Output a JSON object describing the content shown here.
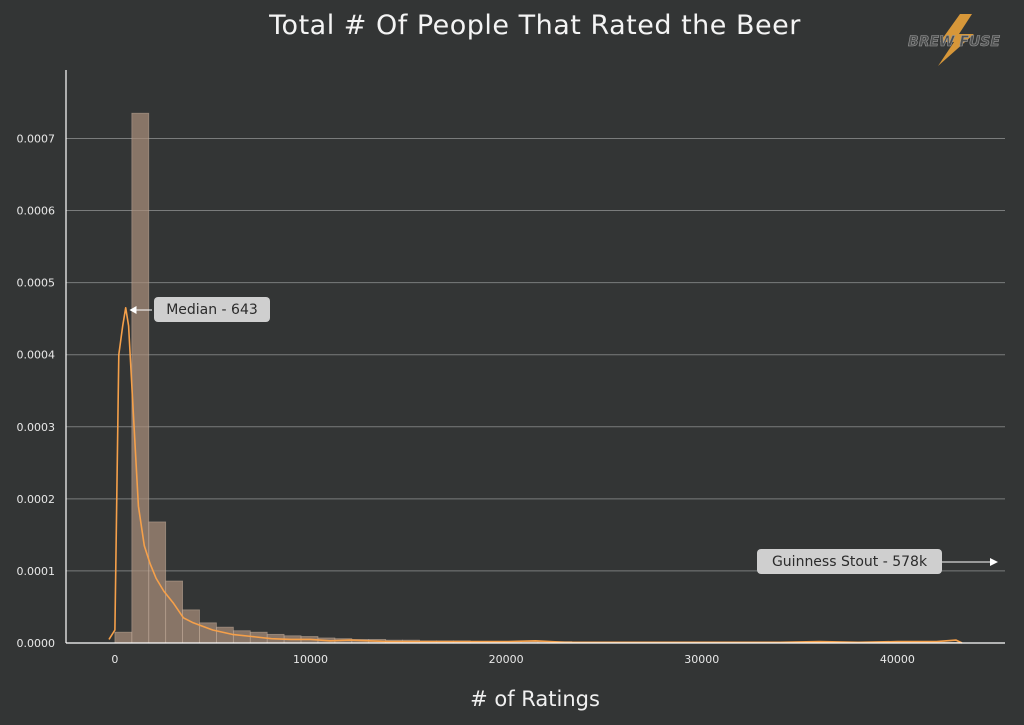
{
  "chart_data": {
    "type": "bar",
    "title": "Total # Of People That Rated the Beer",
    "xlabel": "# of Ratings",
    "ylabel": "",
    "xlim": [
      -2500,
      45500
    ],
    "ylim": [
      0,
      0.00077
    ],
    "xticks": [
      0,
      10000,
      20000,
      30000,
      40000
    ],
    "yticks": [
      0.0,
      0.0001,
      0.0002,
      0.0003,
      0.0004,
      0.0005,
      0.0006,
      0.0007
    ],
    "ytick_labels": [
      "0.0000",
      "0.0001",
      "0.0002",
      "0.0003",
      "0.0004",
      "0.0005",
      "0.0006",
      "0.0007"
    ],
    "grid": "horizontal",
    "bin_width": 865,
    "bin_start": 0,
    "bars": [
      1.5e-05,
      0.000735,
      0.000168,
      8.6e-05,
      4.6e-05,
      2.8e-05,
      2.2e-05,
      1.7e-05,
      1.5e-05,
      1.2e-05,
      1e-05,
      9e-06,
      7e-06,
      6e-06,
      5e-06,
      5e-06,
      4e-06,
      4e-06,
      3e-06,
      3e-06,
      3e-06,
      2e-06,
      2e-06,
      2e-06,
      2e-06,
      2e-06,
      2e-06,
      1e-06,
      1e-06,
      1e-06,
      1e-06,
      1e-06,
      1e-06,
      1e-06,
      1e-06,
      1e-06,
      1e-06,
      1e-06,
      1e-06,
      1e-06,
      1e-06,
      1e-06,
      1e-06,
      1e-06,
      1e-06,
      1e-06,
      1e-06,
      1e-06,
      1e-06,
      1e-06
    ],
    "kde": {
      "x": [
        -300,
        0,
        200,
        400,
        550,
        700,
        900,
        1200,
        1500,
        1800,
        2100,
        2500,
        3000,
        3500,
        4000,
        4500,
        5000,
        6000,
        7000,
        8000,
        9000,
        10000,
        11000,
        12000,
        13000,
        14000,
        16000,
        18000,
        20000,
        21500,
        23000,
        26000,
        30000,
        34000,
        36000,
        38000,
        40000,
        41000,
        42000,
        42500,
        43000,
        43300
      ],
      "y": [
        5e-06,
        1.8e-05,
        0.0004,
        0.00044,
        0.000465,
        0.00044,
        0.00034,
        0.00019,
        0.000135,
        0.00011,
        9e-05,
        7.2e-05,
        5.5e-05,
        3.5e-05,
        2.8e-05,
        2.3e-05,
        1.8e-05,
        1.2e-05,
        9e-06,
        6e-06,
        5e-06,
        5e-06,
        3e-06,
        4e-06,
        3e-06,
        2e-06,
        2e-06,
        2e-06,
        2e-06,
        3e-06,
        1e-06,
        1e-06,
        1e-06,
        1e-06,
        2e-06,
        1e-06,
        2e-06,
        2e-06,
        2e-06,
        3e-06,
        4e-06,
        0.0
      ]
    },
    "annotations": [
      {
        "text": "Median - 643",
        "x": 643,
        "y": 0.000452
      },
      {
        "text": "Guinness Stout - 578k",
        "x": 45000,
        "y": 0.00011,
        "arrow": "right"
      }
    ]
  },
  "style": {
    "background": "#333535",
    "bar_fill": "#a98f7c",
    "bar_stroke": "#c9b3a0",
    "kde_color": "#f5a04a",
    "grid_color": "#7a7c7c",
    "annotation_bg": "#cfcfcf"
  },
  "logo": {
    "text": "BREW FUSE",
    "icon": "lightning-bolt-icon",
    "color": "#e9a23a"
  }
}
